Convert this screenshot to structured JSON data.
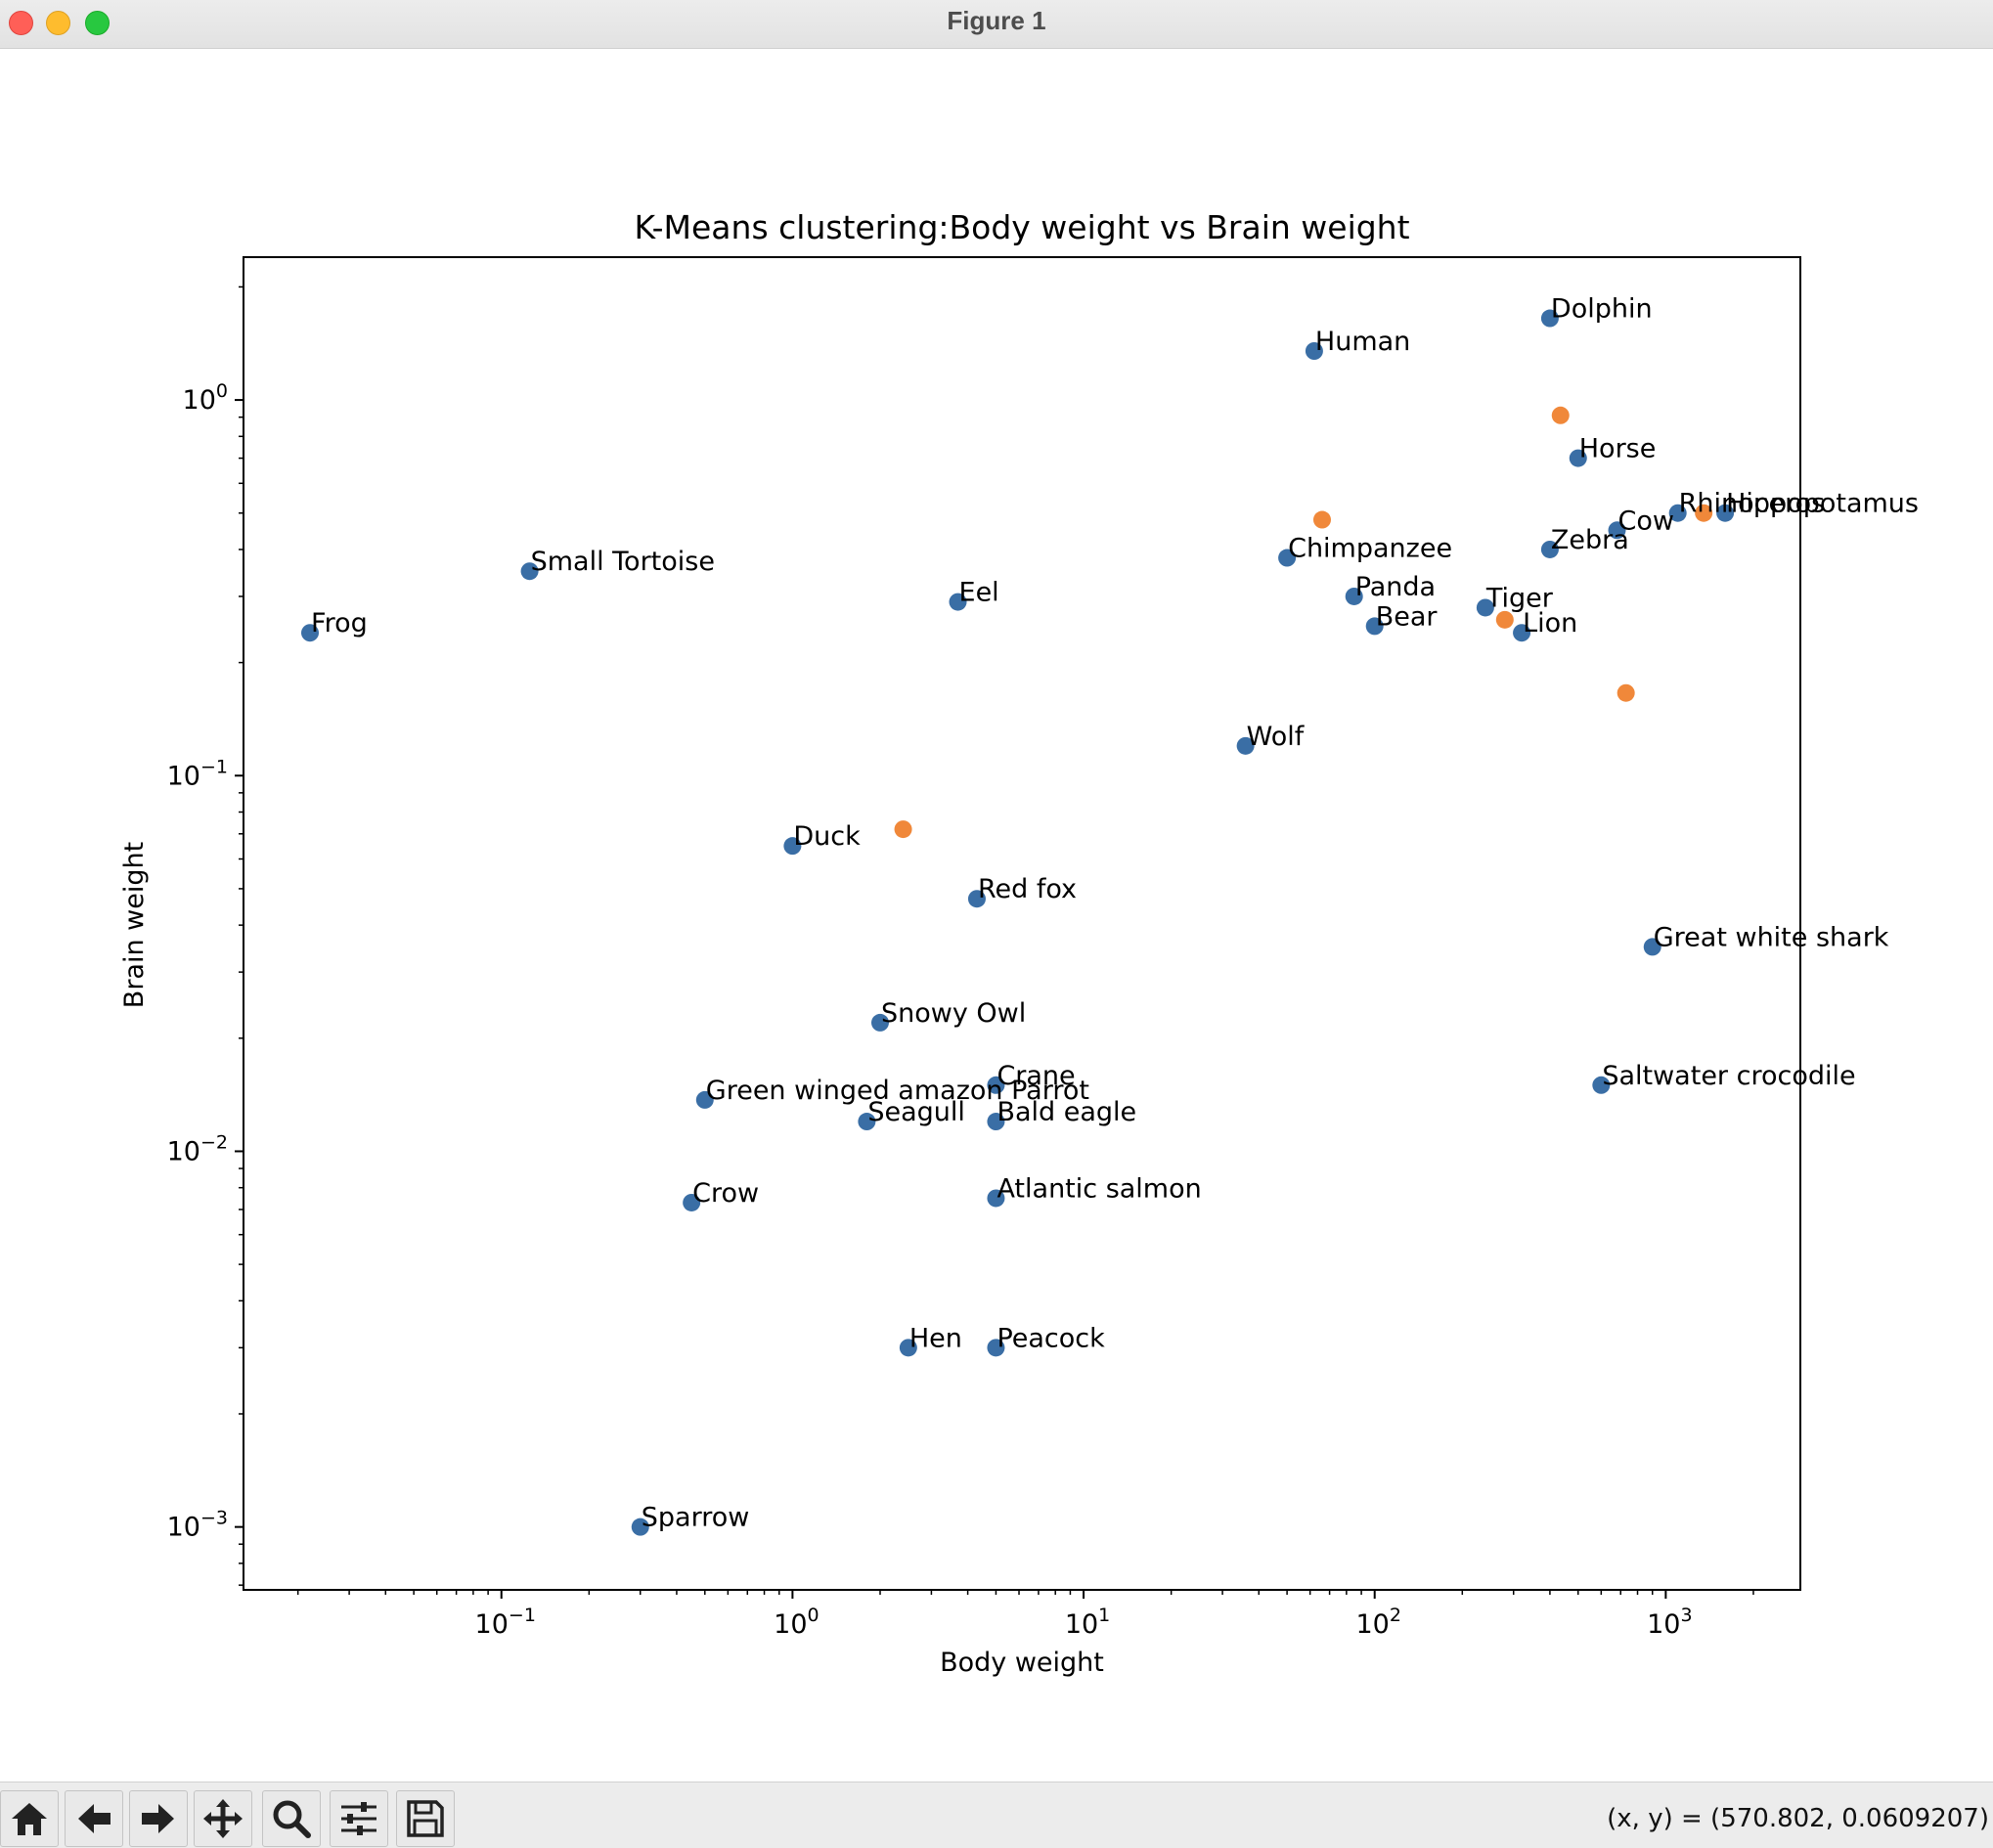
{
  "window": {
    "title": "Figure 1"
  },
  "toolbar": {
    "buttons": [
      {
        "name": "home-button",
        "icon": "home-icon"
      },
      {
        "name": "back-button",
        "icon": "arrow-left-icon"
      },
      {
        "name": "forward-button",
        "icon": "arrow-right-icon"
      },
      {
        "name": "pan-button",
        "icon": "move-icon"
      },
      {
        "name": "zoom-button",
        "icon": "magnifier-icon"
      },
      {
        "name": "configure-subplots-button",
        "icon": "sliders-icon"
      },
      {
        "name": "save-button",
        "icon": "floppy-disk-icon"
      }
    ],
    "coords": "(x, y) = (570.802, 0.0609207)"
  },
  "colors": {
    "points": "#3a6ea5",
    "centroids": "#f0883a",
    "axes": "#000000"
  },
  "chart_data": {
    "type": "scatter",
    "title": "K-Means clustering:Body weight vs Brain weight",
    "xlabel": "Body weight",
    "ylabel": "Brain weight",
    "xscale": "log",
    "yscale": "log",
    "xlim": [
      0.013,
      2900
    ],
    "ylim": [
      0.00068,
      2.4
    ],
    "xticks": [
      {
        "value": 0.1,
        "label": "10^{−1}"
      },
      {
        "value": 1,
        "label": "10^{0}"
      },
      {
        "value": 10,
        "label": "10^{1}"
      },
      {
        "value": 100,
        "label": "10^{2}"
      },
      {
        "value": 1000,
        "label": "10^{3}"
      }
    ],
    "yticks": [
      {
        "value": 0.001,
        "label": "10^{−3}"
      },
      {
        "value": 0.01,
        "label": "10^{−2}"
      },
      {
        "value": 0.1,
        "label": "10^{−1}"
      },
      {
        "value": 1,
        "label": "10^{0}"
      }
    ],
    "grid": false,
    "points": [
      {
        "label": "Dolphin",
        "x": 400,
        "y": 1.65
      },
      {
        "label": "Human",
        "x": 62,
        "y": 1.35
      },
      {
        "label": "Horse",
        "x": 500,
        "y": 0.7
      },
      {
        "label": "Rhinoceros",
        "x": 1100,
        "y": 0.5
      },
      {
        "label": "Hippopotamus",
        "x": 1600,
        "y": 0.5
      },
      {
        "label": "Cow",
        "x": 680,
        "y": 0.45
      },
      {
        "label": "Zebra",
        "x": 400,
        "y": 0.4
      },
      {
        "label": "Chimpanzee",
        "x": 50,
        "y": 0.38
      },
      {
        "label": "Small Tortoise",
        "x": 0.125,
        "y": 0.35
      },
      {
        "label": "Panda",
        "x": 85,
        "y": 0.3
      },
      {
        "label": "Eel",
        "x": 3.7,
        "y": 0.29
      },
      {
        "label": "Tiger",
        "x": 240,
        "y": 0.28
      },
      {
        "label": "Bear",
        "x": 100,
        "y": 0.25
      },
      {
        "label": "Lion",
        "x": 320,
        "y": 0.24
      },
      {
        "label": "Frog",
        "x": 0.022,
        "y": 0.24
      },
      {
        "label": "Wolf",
        "x": 36,
        "y": 0.12
      },
      {
        "label": "Duck",
        "x": 1.0,
        "y": 0.065
      },
      {
        "label": "Red fox",
        "x": 4.3,
        "y": 0.047
      },
      {
        "label": "Great white shark",
        "x": 900,
        "y": 0.035
      },
      {
        "label": "Snowy Owl",
        "x": 2.0,
        "y": 0.022
      },
      {
        "label": "Crane",
        "x": 5.0,
        "y": 0.015
      },
      {
        "label": "Saltwater crocodile",
        "x": 600,
        "y": 0.015
      },
      {
        "label": "Green winged amazon  Parrot",
        "x": 0.5,
        "y": 0.0137
      },
      {
        "label": "Seagull",
        "x": 1.8,
        "y": 0.012
      },
      {
        "label": "Bald eagle",
        "x": 5.0,
        "y": 0.012
      },
      {
        "label": "Atlantic salmon",
        "x": 5.0,
        "y": 0.0075
      },
      {
        "label": "Crow",
        "x": 0.45,
        "y": 0.0073
      },
      {
        "label": "Hen",
        "x": 2.5,
        "y": 0.003
      },
      {
        "label": "Peacock",
        "x": 5.0,
        "y": 0.003
      },
      {
        "label": "Sparrow",
        "x": 0.3,
        "y": 0.001
      }
    ],
    "centroids": [
      {
        "x": 435,
        "y": 0.91
      },
      {
        "x": 66,
        "y": 0.48
      },
      {
        "x": 1350,
        "y": 0.5
      },
      {
        "x": 280,
        "y": 0.26
      },
      {
        "x": 730,
        "y": 0.166
      },
      {
        "x": 2.4,
        "y": 0.072
      }
    ]
  }
}
